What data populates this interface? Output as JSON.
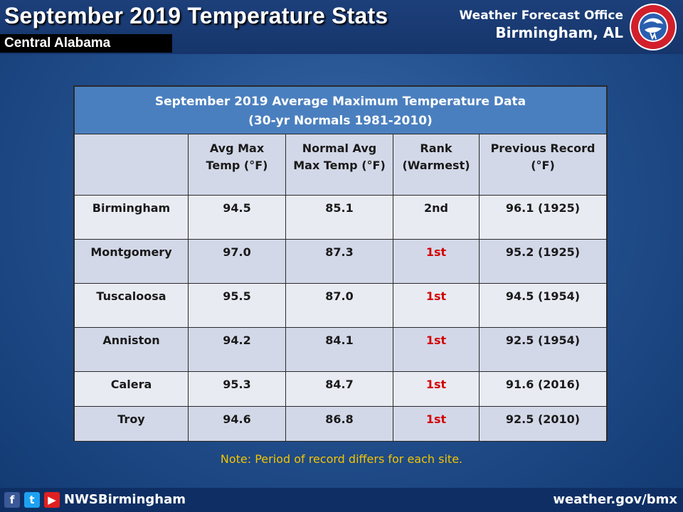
{
  "header": {
    "title": "September 2019 Temperature Stats",
    "subtitle": "Central Alabama",
    "office_line1": "Weather Forecast Office",
    "office_line2": "Birmingham, AL",
    "logo_icon": "nws-logo-icon"
  },
  "table": {
    "title_line1": "September 2019  Average Maximum Temperature Data",
    "title_line2": "(30-yr Normals 1981-2010)",
    "columns": [
      {
        "line1": "",
        "line2": ""
      },
      {
        "line1": "Avg Max",
        "line2": "Temp (°F)"
      },
      {
        "line1": "Normal  Avg",
        "line2": "Max Temp (°F)"
      },
      {
        "line1": "Rank",
        "line2": "(Warmest)"
      },
      {
        "line1": "Previous Record",
        "line2": "(°F)"
      }
    ],
    "rows": [
      {
        "site": "Birmingham",
        "avg_max": "94.5",
        "normal": "85.1",
        "rank": "2nd",
        "record": "96.1 (1925)"
      },
      {
        "site": "Montgomery",
        "avg_max": "97.0",
        "normal": "87.3",
        "rank": "1st",
        "record": "95.2 (1925)"
      },
      {
        "site": "Tuscaloosa",
        "avg_max": "95.5",
        "normal": "87.0",
        "rank": "1st",
        "record": "94.5 (1954)"
      },
      {
        "site": "Anniston",
        "avg_max": "94.2",
        "normal": "84.1",
        "rank": "1st",
        "record": "92.5 (1954)"
      },
      {
        "site": "Calera",
        "avg_max": "95.3",
        "normal": "84.7",
        "rank": "1st",
        "record": "91.6 (2016)"
      },
      {
        "site": "Troy",
        "avg_max": "94.6",
        "normal": "86.8",
        "rank": "1st",
        "record": "92.5 (2010)"
      }
    ]
  },
  "note": "Note: Period of record differs for each site.",
  "footer": {
    "facebook_icon": "f",
    "twitter_icon": "t",
    "youtube_icon": "▶",
    "handle": "NWSBirmingham",
    "website": "weather.gov/bmx"
  },
  "colors": {
    "rank_first": "#d40000",
    "note": "#f5c400",
    "table_title_bg": "#4a7fbf"
  }
}
